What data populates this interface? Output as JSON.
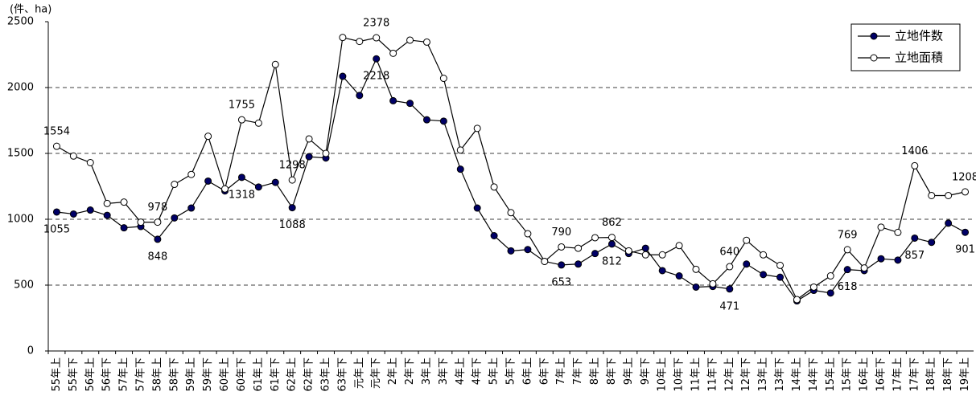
{
  "chart_data": {
    "type": "line",
    "y_axis_label": "(件、ha)",
    "categories": [
      "55年上",
      "55年下",
      "56年上",
      "56年下",
      "57年上",
      "57年下",
      "58年上",
      "58年下",
      "59年上",
      "59年下",
      "60年上",
      "60年下",
      "61年上",
      "61年下",
      "62年上",
      "62年下",
      "63年上",
      "63年下",
      "元年上",
      "元年下",
      "2年上",
      "2年下",
      "3年上",
      "3年下",
      "4年上",
      "4年下",
      "5年上",
      "5年下",
      "6年上",
      "6年下",
      "7年上",
      "7年下",
      "8年上",
      "8年下",
      "9年上",
      "9年下",
      "10年上",
      "10年下",
      "11年上",
      "11年下",
      "12年上",
      "12年下",
      "13年上",
      "13年下",
      "14年上",
      "14年下",
      "15年上",
      "15年下",
      "16年上",
      "16年下",
      "17年上",
      "17年下",
      "18年上",
      "18年下",
      "19年上"
    ],
    "series": [
      {
        "name": "立地件数",
        "color": "#000066",
        "marker": "filled",
        "values": [
          1055,
          1040,
          1070,
          1030,
          935,
          945,
          848,
          1010,
          1085,
          1290,
          1215,
          1318,
          1245,
          1280,
          1088,
          1475,
          1465,
          2085,
          1940,
          2218,
          1900,
          1880,
          1755,
          1745,
          1380,
          1085,
          875,
          760,
          770,
          680,
          653,
          660,
          740,
          812,
          740,
          780,
          610,
          570,
          485,
          490,
          471,
          660,
          580,
          560,
          380,
          460,
          440,
          618,
          610,
          700,
          690,
          857,
          825,
          970,
          901
        ],
        "value_labels": [
          "1055",
          null,
          null,
          null,
          null,
          null,
          "848",
          null,
          null,
          null,
          null,
          "1318",
          null,
          null,
          "1088",
          null,
          null,
          null,
          null,
          "2218",
          null,
          null,
          null,
          null,
          null,
          null,
          null,
          null,
          null,
          null,
          "653",
          null,
          null,
          "812",
          null,
          null,
          null,
          null,
          null,
          null,
          "471",
          null,
          null,
          null,
          null,
          null,
          null,
          "618",
          null,
          null,
          null,
          "857",
          null,
          null,
          "901"
        ]
      },
      {
        "name": "立地面積",
        "color": "#ffffff",
        "marker": "open",
        "values": [
          1554,
          1480,
          1430,
          1120,
          1130,
          978,
          978,
          1265,
          1340,
          1630,
          1230,
          1755,
          1730,
          2175,
          1298,
          1610,
          1500,
          2380,
          2350,
          2378,
          2260,
          2360,
          2345,
          2070,
          1525,
          1690,
          1245,
          1050,
          890,
          680,
          790,
          780,
          860,
          862,
          760,
          730,
          730,
          800,
          620,
          510,
          640,
          840,
          730,
          650,
          390,
          485,
          570,
          769,
          630,
          940,
          900,
          1406,
          1180,
          1180,
          1208
        ],
        "value_labels": [
          "1554",
          null,
          null,
          null,
          null,
          null,
          "978",
          null,
          null,
          null,
          null,
          "1755",
          null,
          null,
          "1298",
          null,
          null,
          null,
          null,
          "2378",
          null,
          null,
          null,
          null,
          null,
          null,
          null,
          null,
          null,
          null,
          "790",
          null,
          null,
          "862",
          null,
          null,
          null,
          null,
          null,
          null,
          "640",
          null,
          null,
          null,
          null,
          null,
          null,
          "769",
          null,
          null,
          null,
          "1406",
          null,
          null,
          "1208"
        ]
      }
    ],
    "ylim": [
      0,
      2500
    ],
    "yticks": [
      0,
      500,
      1000,
      1500,
      2000,
      2500
    ],
    "grid": true,
    "legend": "top-right"
  }
}
